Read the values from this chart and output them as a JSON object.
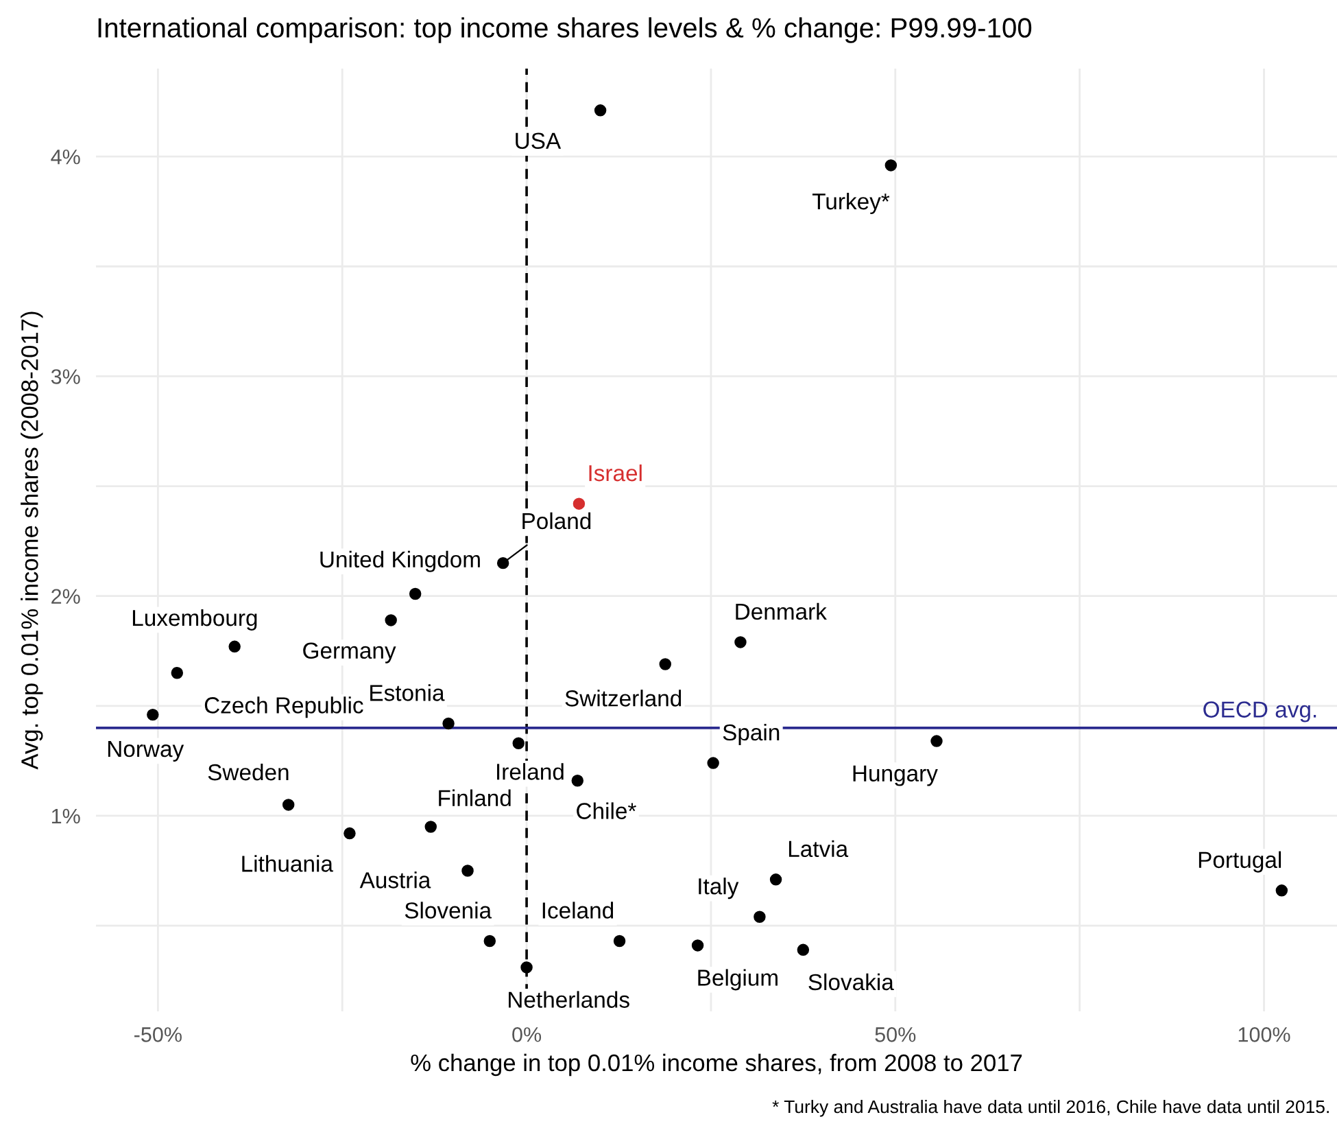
{
  "chart_data": {
    "type": "scatter",
    "title": "International comparison: top income shares levels & % change: P99.99-100",
    "xlabel": "% change in top 0.01% income shares, from 2008 to 2017",
    "ylabel": "Avg. top 0.01% income shares (2008-2017)",
    "series": [
      {
        "color": "#000000",
        "x": [
          10.0,
          49.4,
          -3.2,
          -15.1,
          -18.4,
          -39.6,
          -47.4,
          -50.7,
          -10.6,
          -1.1,
          6.9,
          -32.3,
          -24.0,
          -13.0,
          -8.0,
          -5.0,
          0,
          12.6,
          18.8,
          29.0,
          25.3,
          55.6,
          33.8,
          31.6,
          23.2,
          37.5,
          102.4
        ],
        "values": [
          4.21,
          3.96,
          2.15,
          2.01,
          1.89,
          1.77,
          1.65,
          1.46,
          1.42,
          1.33,
          1.16,
          1.05,
          0.92,
          0.95,
          0.75,
          0.43,
          0.31,
          0.43,
          1.69,
          1.79,
          1.24,
          1.34,
          0.71,
          0.54,
          0.41,
          0.39,
          0.66
        ]
      },
      {
        "color": "#d62f2f",
        "x": [
          7.1
        ],
        "values": [
          2.42
        ]
      }
    ],
    "annotations": [
      {
        "text": "USA",
        "x": 10.0,
        "y": 4.21
      },
      {
        "text": "Turkey*",
        "x": 49.4,
        "y": 3.96
      },
      {
        "text": "Poland",
        "x": -3.2,
        "y": 2.15
      },
      {
        "text": "United Kingdom",
        "x": -15.1,
        "y": 2.01
      },
      {
        "text": "Germany",
        "x": -18.4,
        "y": 1.89
      },
      {
        "text": "Luxembourg",
        "x": -39.6,
        "y": 1.77
      },
      {
        "text": "Czech Republic",
        "x": -47.4,
        "y": 1.65
      },
      {
        "text": "Norway",
        "x": -50.7,
        "y": 1.46
      },
      {
        "text": "Estonia",
        "x": -10.6,
        "y": 1.42
      },
      {
        "text": "Ireland",
        "x": -1.1,
        "y": 1.33
      },
      {
        "text": "Chile*",
        "x": 6.9,
        "y": 1.16
      },
      {
        "text": "Sweden",
        "x": -32.3,
        "y": 1.05
      },
      {
        "text": "Lithuania",
        "x": -24.0,
        "y": 0.92
      },
      {
        "text": "Finland",
        "x": -13.0,
        "y": 0.95
      },
      {
        "text": "Austria",
        "x": -8.0,
        "y": 0.75
      },
      {
        "text": "Slovenia",
        "x": -5.0,
        "y": 0.43
      },
      {
        "text": "Netherlands",
        "x": 0,
        "y": 0.31
      },
      {
        "text": "Iceland",
        "x": 12.6,
        "y": 0.43
      },
      {
        "text": "Switzerland",
        "x": 18.8,
        "y": 1.69
      },
      {
        "text": "Denmark",
        "x": 29.0,
        "y": 1.79
      },
      {
        "text": "Spain",
        "x": 25.3,
        "y": 1.24
      },
      {
        "text": "Hungary",
        "x": 55.6,
        "y": 1.34
      },
      {
        "text": "Latvia",
        "x": 33.8,
        "y": 0.71
      },
      {
        "text": "Italy",
        "x": 31.6,
        "y": 0.54
      },
      {
        "text": "Belgium",
        "x": 23.2,
        "y": 0.41
      },
      {
        "text": "Slovakia",
        "x": 37.5,
        "y": 0.39
      },
      {
        "text": "Portugal",
        "x": 102.4,
        "y": 0.66
      },
      {
        "text": "Israel",
        "x": 7.1,
        "y": 2.42
      },
      "* Turky and Australia have data until 2016, Chile have data until 2015."
    ],
    "ref_lines": [
      {
        "axis": "x",
        "value": 0,
        "color": "#000000",
        "line_style": "dashed"
      },
      {
        "axis": "y",
        "value": 1.4,
        "label": "OECD avg.",
        "color": "#2b2b8f",
        "line_style": "solid"
      }
    ],
    "xlim": [
      -58.4,
      109.9
    ],
    "ylim": [
      0.11,
      4.4
    ],
    "xticks": [
      {
        "value": -50,
        "label": "-50%"
      },
      {
        "value": -25,
        "label": null
      },
      {
        "value": 0,
        "label": "0%"
      },
      {
        "value": 25,
        "label": null
      },
      {
        "value": 50,
        "label": "50%"
      },
      {
        "value": 75,
        "label": null
      },
      {
        "value": 100,
        "label": "100%"
      }
    ],
    "yticks": [
      {
        "value": 0.5,
        "label": null
      },
      {
        "value": 1,
        "label": "1%"
      },
      {
        "value": 1.5,
        "label": null
      },
      {
        "value": 2,
        "label": "2%"
      },
      {
        "value": 2.5,
        "label": null
      },
      {
        "value": 3,
        "label": "3%"
      },
      {
        "value": 3.5,
        "label": null
      },
      {
        "value": 4,
        "label": "4%"
      }
    ],
    "grid": true,
    "marker": "circle",
    "legend": false
  }
}
